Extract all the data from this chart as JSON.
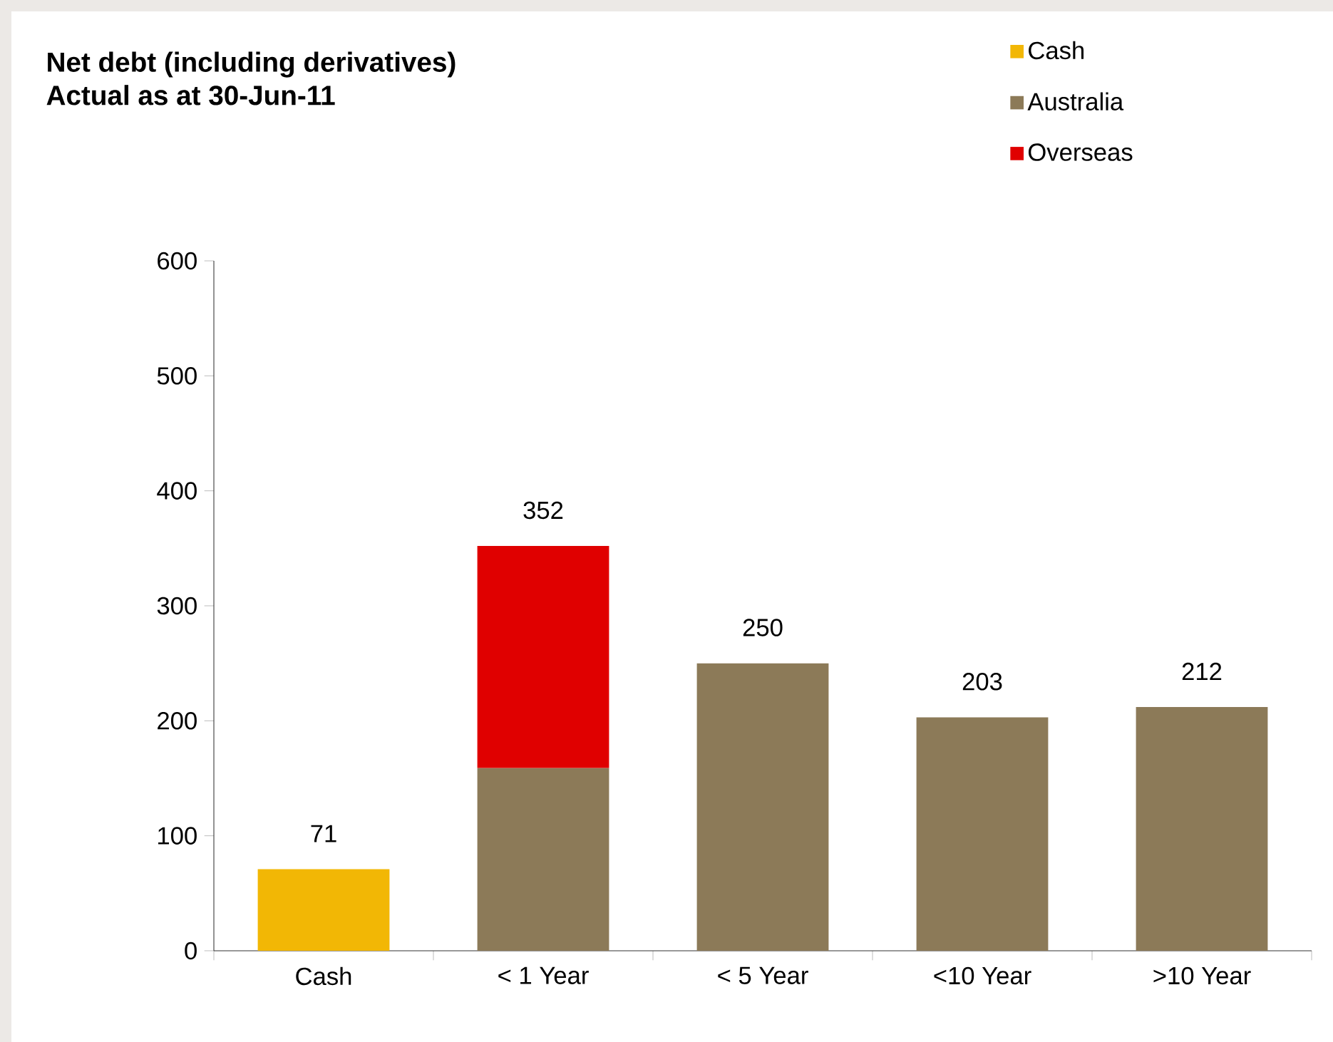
{
  "chart_data": {
    "type": "bar",
    "stacked": true,
    "title": "Net debt (including derivatives)",
    "subtitle": "Actual as at 30-Jun-11",
    "categories": [
      "Cash",
      "< 1 Year",
      "< 5 Year",
      "<10 Year",
      ">10 Year"
    ],
    "series": [
      {
        "name": "Cash",
        "color": "#f2b705",
        "values": [
          71,
          null,
          null,
          null,
          null
        ]
      },
      {
        "name": "Australia",
        "color": "#8c7a58",
        "values": [
          null,
          159,
          250,
          203,
          212
        ]
      },
      {
        "name": "Overseas",
        "color": "#e00000",
        "values": [
          null,
          193,
          null,
          null,
          null
        ]
      }
    ],
    "totals": [
      "71",
      "352",
      "250",
      "203",
      "212"
    ],
    "ylim": [
      0,
      600
    ],
    "yticks": [
      0,
      100,
      200,
      300,
      400,
      500,
      600
    ],
    "legend": "top right"
  }
}
